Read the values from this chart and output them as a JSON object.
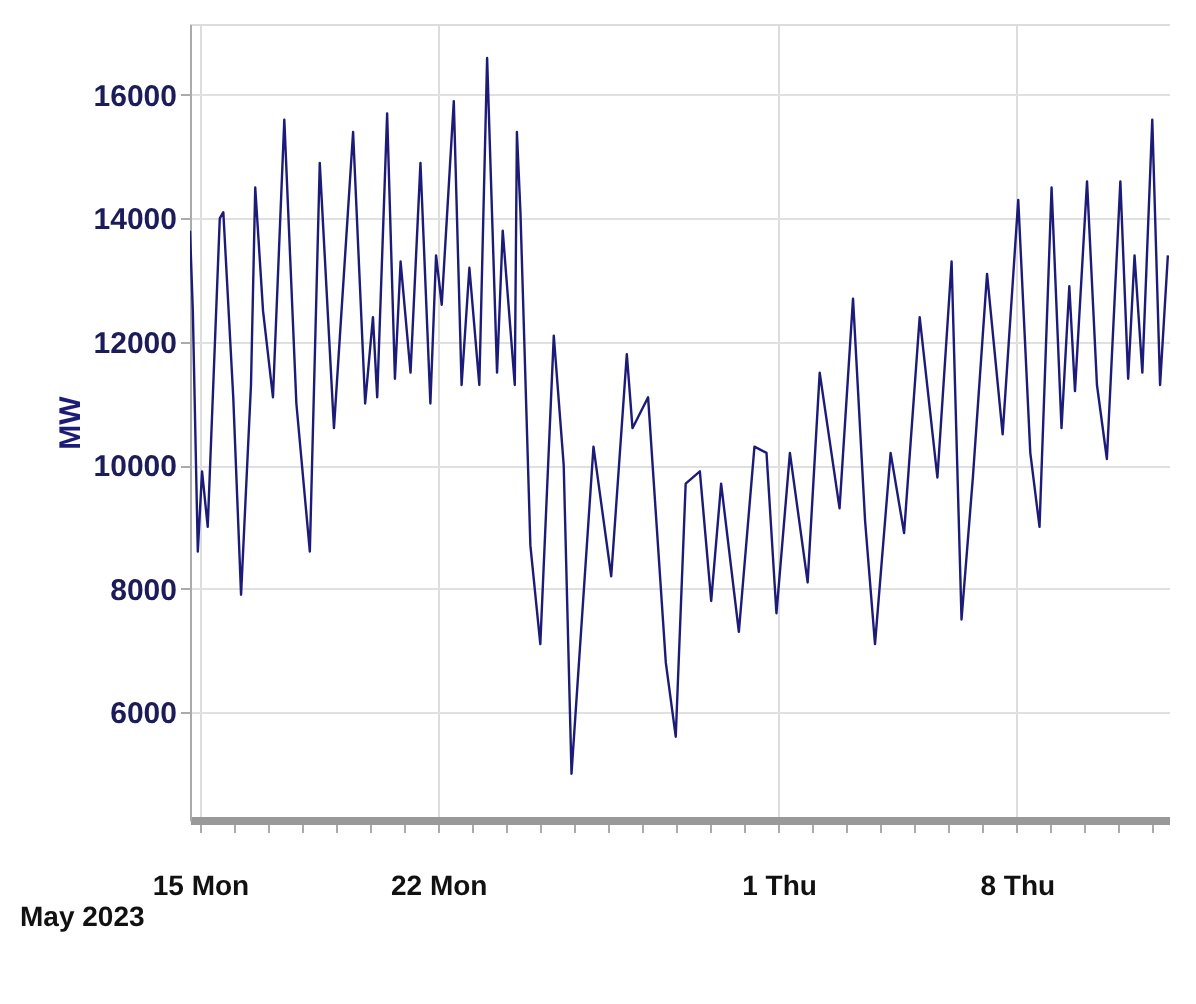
{
  "chart_data": {
    "type": "line",
    "ylabel": "MW",
    "annotations": [
      "May 2023"
    ],
    "xlim": [
      "2023-05-14T17:00",
      "2023-06-12T12:00"
    ],
    "ylim": [
      4250,
      17150
    ],
    "yticks": [
      6000,
      8000,
      10000,
      12000,
      14000,
      16000
    ],
    "xticks": [
      {
        "value": "2023-05-15",
        "label": "15 Mon"
      },
      {
        "value": "2023-05-16",
        "label": null
      },
      {
        "value": "2023-05-17",
        "label": null
      },
      {
        "value": "2023-05-18",
        "label": null
      },
      {
        "value": "2023-05-19",
        "label": null
      },
      {
        "value": "2023-05-20",
        "label": null
      },
      {
        "value": "2023-05-21",
        "label": null
      },
      {
        "value": "2023-05-22",
        "label": "22 Mon"
      },
      {
        "value": "2023-05-23",
        "label": null
      },
      {
        "value": "2023-05-24",
        "label": null
      },
      {
        "value": "2023-05-25",
        "label": null
      },
      {
        "value": "2023-05-26",
        "label": null
      },
      {
        "value": "2023-05-27",
        "label": null
      },
      {
        "value": "2023-05-28",
        "label": null
      },
      {
        "value": "2023-05-29",
        "label": null
      },
      {
        "value": "2023-05-30",
        "label": null
      },
      {
        "value": "2023-05-31",
        "label": null
      },
      {
        "value": "2023-06-01",
        "label": "1 Thu"
      },
      {
        "value": "2023-06-02",
        "label": null
      },
      {
        "value": "2023-06-03",
        "label": null
      },
      {
        "value": "2023-06-04",
        "label": null
      },
      {
        "value": "2023-06-05",
        "label": null
      },
      {
        "value": "2023-06-06",
        "label": null
      },
      {
        "value": "2023-06-07",
        "label": null
      },
      {
        "value": "2023-06-08",
        "label": "8 Thu"
      },
      {
        "value": "2023-06-09",
        "label": null
      },
      {
        "value": "2023-06-10",
        "label": null
      },
      {
        "value": "2023-06-11",
        "label": null
      },
      {
        "value": "2023-06-12",
        "label": null
      }
    ],
    "grid": true,
    "marker": "none",
    "line_style": "solid",
    "series": [
      {
        "color": "#1c1c78",
        "x": [
          "2023-05-14T17:00",
          "2023-05-14T19:00",
          "2023-05-14T22:30",
          "2023-05-15T01:30",
          "2023-05-15T05:30",
          "2023-05-15T14:00",
          "2023-05-15T16:30",
          "2023-05-15T23:30",
          "2023-05-16T05:00",
          "2023-05-16T12:00",
          "2023-05-16T15:00",
          "2023-05-16T20:30",
          "2023-05-17T03:30",
          "2023-05-17T11:30",
          "2023-05-17T20:00",
          "2023-05-18T05:30",
          "2023-05-18T12:30",
          "2023-05-18T22:30",
          "2023-05-19T12:00",
          "2023-05-19T20:30",
          "2023-05-20T02:00",
          "2023-05-20T05:00",
          "2023-05-20T12:00",
          "2023-05-20T17:30",
          "2023-05-20T21:30",
          "2023-05-21T04:30",
          "2023-05-21T11:30",
          "2023-05-21T18:30",
          "2023-05-21T22:30",
          "2023-05-22T02:30",
          "2023-05-22T11:00",
          "2023-05-22T16:30",
          "2023-05-22T22:00",
          "2023-05-23T05:00",
          "2023-05-23T10:30",
          "2023-05-23T17:30",
          "2023-05-23T21:30",
          "2023-05-24T06:00",
          "2023-05-24T07:30",
          "2023-05-24T10:00",
          "2023-05-24T17:00",
          "2023-05-25T00:00",
          "2023-05-25T09:30",
          "2023-05-25T16:30",
          "2023-05-25T22:00",
          "2023-05-26T13:30",
          "2023-05-27T02:00",
          "2023-05-27T13:00",
          "2023-05-27T17:00",
          "2023-05-28T04:00",
          "2023-05-28T16:30",
          "2023-05-28T23:30",
          "2023-05-29T06:30",
          "2023-05-29T16:30",
          "2023-05-30T00:30",
          "2023-05-30T07:30",
          "2023-05-30T20:00",
          "2023-05-31T07:00",
          "2023-05-31T15:30",
          "2023-05-31T22:30",
          "2023-06-01T08:00",
          "2023-06-01T20:30",
          "2023-06-02T05:00",
          "2023-06-02T19:00",
          "2023-06-03T04:30",
          "2023-06-03T13:00",
          "2023-06-03T20:00",
          "2023-06-04T07:00",
          "2023-06-04T16:30",
          "2023-06-05T03:30",
          "2023-06-05T16:00",
          "2023-06-06T02:00",
          "2023-06-06T09:00",
          "2023-06-06T17:00",
          "2023-06-07T03:00",
          "2023-06-07T14:00",
          "2023-06-08T01:00",
          "2023-06-08T09:30",
          "2023-06-08T16:00",
          "2023-06-09T00:30",
          "2023-06-09T07:30",
          "2023-06-09T13:00",
          "2023-06-09T17:00",
          "2023-06-10T01:30",
          "2023-06-10T08:30",
          "2023-06-10T15:30",
          "2023-06-11T01:00",
          "2023-06-11T06:30",
          "2023-06-11T11:00",
          "2023-06-11T16:30",
          "2023-06-11T23:30",
          "2023-06-12T05:00",
          "2023-06-12T10:30"
        ],
        "values": [
          13800,
          12500,
          8600,
          9900,
          9000,
          14000,
          14100,
          11100,
          7900,
          11300,
          14500,
          12500,
          11100,
          15600,
          11000,
          8600,
          14900,
          10600,
          15400,
          11000,
          12400,
          11100,
          15700,
          11400,
          13300,
          11500,
          14900,
          11000,
          13400,
          12600,
          15900,
          11300,
          13200,
          11300,
          16600,
          11500,
          13800,
          11300,
          15400,
          14100,
          8700,
          7100,
          12100,
          10000,
          5000,
          10300,
          8200,
          11800,
          10600,
          11100,
          6800,
          5600,
          9700,
          9900,
          7800,
          9700,
          7300,
          10300,
          10200,
          7600,
          10200,
          8100,
          11500,
          9300,
          12700,
          9100,
          7100,
          10200,
          8900,
          12400,
          9800,
          13300,
          7500,
          9800,
          13100,
          10500,
          14300,
          10200,
          9000,
          14500,
          10600,
          12900,
          11200,
          14600,
          11300,
          10100,
          14600,
          11400,
          13400,
          11500,
          15600,
          11300,
          13400
        ]
      }
    ]
  }
}
